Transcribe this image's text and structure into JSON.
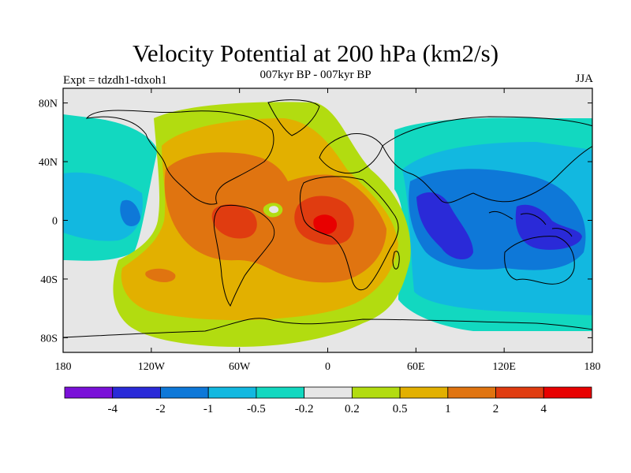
{
  "title": "Velocity Potential at 200 hPa (km2/s)",
  "center_subtitle": "007kyr BP - 007kyr BP",
  "left_subtitle": "Expt = tdzdh1-tdxoh1",
  "right_subtitle": "JJA",
  "chart_data": {
    "type": "heatmap",
    "x_ticks": [
      "180",
      "120W",
      "60W",
      "0",
      "60E",
      "120E",
      "180"
    ],
    "y_ticks": [
      "80N",
      "40N",
      "0",
      "40S",
      "80S"
    ],
    "xlim": [
      -180,
      180
    ],
    "ylim": [
      -90,
      90
    ],
    "colorbar": {
      "labels": [
        "-4",
        "-2",
        "-1",
        "-0.5",
        "-0.2",
        "0.2",
        "0.5",
        "1",
        "2",
        "4"
      ],
      "colors": [
        "#7a10d8",
        "#2a2ad8",
        "#0e78d8",
        "#12b8e0",
        "#12d8c0",
        "#e6e6e6",
        "#b2dc10",
        "#e2b000",
        "#e07410",
        "#e03c10",
        "#e80000"
      ]
    },
    "features": [
      {
        "name": "positive-center-atlantic-africa",
        "lon": -8,
        "lat": 0,
        "level": "4"
      },
      {
        "name": "positive-center-south-america",
        "lon": -65,
        "lat": 0,
        "level": "4"
      },
      {
        "name": "negative-center-indian-ocean",
        "lon": 72,
        "lat": -5,
        "level": "-4"
      },
      {
        "name": "negative-center-west-pacific",
        "lon": 150,
        "lat": -5,
        "level": "-2"
      }
    ]
  }
}
